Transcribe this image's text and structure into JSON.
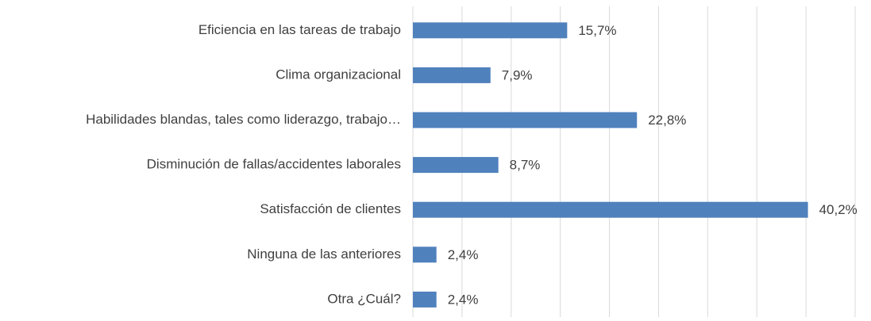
{
  "chart_data": {
    "type": "bar",
    "orientation": "horizontal",
    "categories": [
      "Eficiencia en las tareas de trabajo",
      "Clima organizacional",
      "Habilidades blandas, tales como liderazgo, trabajo…",
      "Disminución de fallas/accidentes laborales",
      "Satisfacción de clientes",
      "Ninguna de las anteriores",
      "Otra ¿Cuál?"
    ],
    "values": [
      15.7,
      7.9,
      22.8,
      8.7,
      40.2,
      2.4,
      2.4
    ],
    "value_labels": [
      "15,7%",
      "7,9%",
      "22,8%",
      "8,7%",
      "40,2%",
      "2,4%",
      "2,4%"
    ],
    "color": "#4f81bd",
    "xlim": [
      0,
      45
    ],
    "xticks": [
      0,
      5,
      10,
      15,
      20,
      25,
      30,
      35,
      40,
      45
    ],
    "grid": true
  }
}
